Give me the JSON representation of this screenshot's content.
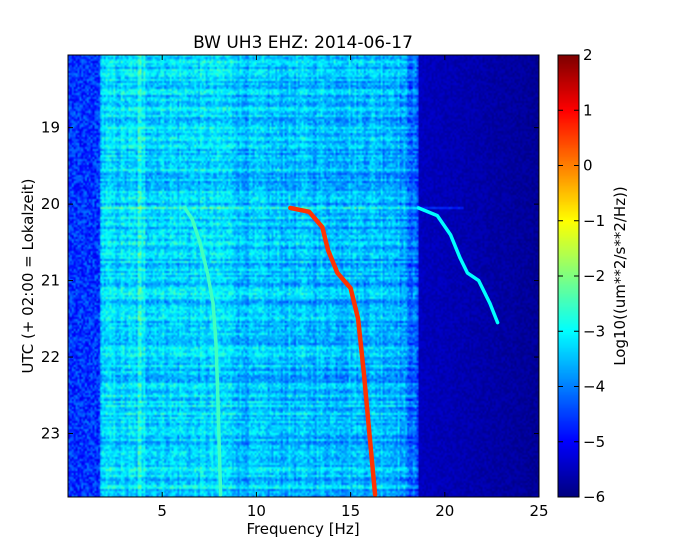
{
  "chart_data": {
    "type": "heatmap",
    "title": "BW UH3 EHZ: 2014-06-17",
    "xlabel": "Frequency [Hz]",
    "ylabel": "UTC (+ 02:00 = Lokalzeit)",
    "xlim": [
      0,
      25
    ],
    "ylim": [
      23.83,
      18.05
    ],
    "xticks": [
      5,
      10,
      15,
      20,
      25
    ],
    "yticks": [
      19,
      20,
      21,
      22,
      23
    ],
    "colorbar": {
      "label": "Log10((um**2/s**2/Hz))",
      "range": [
        -6,
        2
      ],
      "ticks": [
        2,
        1,
        0,
        -1,
        -2,
        -3,
        -4,
        -5,
        -6
      ],
      "colormap": "jet"
    },
    "background": {
      "level_low_freq": -3.3,
      "level_mid_freq": -3.5,
      "level_above_18hz": -5.5,
      "cutoff_hz": 18.6
    },
    "horizontal_band_utc": 20.05,
    "lines": [
      {
        "color_level": -2.5,
        "points": [
          [
            6.2,
            20.05
          ],
          [
            6.6,
            20.2
          ],
          [
            7.0,
            20.5
          ],
          [
            7.4,
            20.9
          ],
          [
            7.7,
            21.3
          ],
          [
            7.85,
            21.8
          ],
          [
            7.95,
            22.5
          ],
          [
            8.1,
            23.8
          ]
        ]
      },
      {
        "color_level": 0.6,
        "points": [
          [
            11.8,
            20.05
          ],
          [
            12.8,
            20.1
          ],
          [
            13.5,
            20.3
          ],
          [
            13.8,
            20.6
          ],
          [
            14.3,
            20.9
          ],
          [
            15.0,
            21.1
          ],
          [
            15.4,
            21.5
          ],
          [
            15.7,
            22.2
          ],
          [
            16.0,
            23.0
          ],
          [
            16.3,
            23.8
          ]
        ]
      },
      {
        "color_level": -3.0,
        "points": [
          [
            18.6,
            20.05
          ],
          [
            19.6,
            20.15
          ],
          [
            20.3,
            20.4
          ],
          [
            20.8,
            20.7
          ],
          [
            21.2,
            20.9
          ],
          [
            21.8,
            21.0
          ],
          [
            22.4,
            21.3
          ],
          [
            22.8,
            21.55
          ]
        ]
      }
    ]
  }
}
